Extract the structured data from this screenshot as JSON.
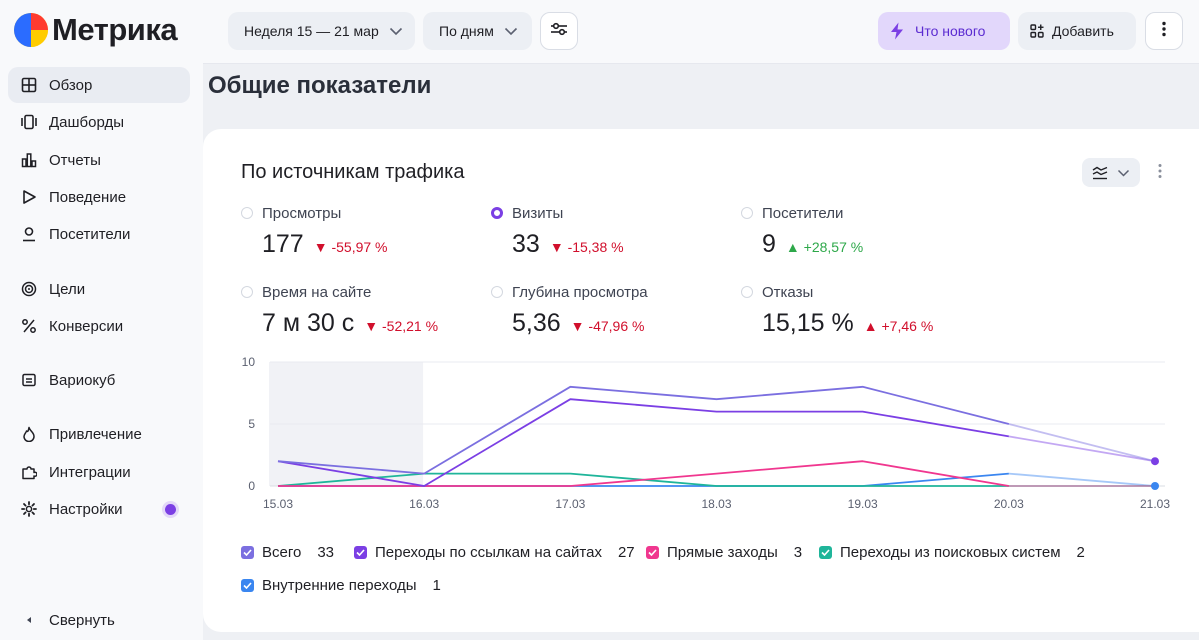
{
  "app": {
    "brand": "Метрика"
  },
  "sidebar": {
    "items": [
      {
        "label": "Обзор",
        "icon": "grid-icon",
        "active": true
      },
      {
        "label": "Дашборды",
        "icon": "dashboard-icon"
      },
      {
        "label": "Отчеты",
        "icon": "bar-chart-icon"
      },
      {
        "label": "Поведение",
        "icon": "play-icon"
      },
      {
        "label": "Посетители",
        "icon": "user-icon"
      },
      {
        "label": "Цели",
        "icon": "target-icon"
      },
      {
        "label": "Конверсии",
        "icon": "percent-icon"
      },
      {
        "label": "Вариокуб",
        "icon": "cube-icon"
      },
      {
        "label": "Привлечение",
        "icon": "flame-icon"
      },
      {
        "label": "Интеграции",
        "icon": "puzzle-icon"
      },
      {
        "label": "Настройки",
        "icon": "gear-icon"
      }
    ],
    "collapse_label": "Свернуть"
  },
  "topbar": {
    "period": "Неделя 15 — 21 мар",
    "grouping": "По дням",
    "whats_new": "Что нового",
    "add": "Добавить"
  },
  "page": {
    "title": "Общие показатели"
  },
  "widget": {
    "title": "По источникам трафика",
    "metrics": [
      {
        "label": "Просмотры",
        "value": "177",
        "delta": "-55,97 %",
        "dir": "down",
        "selected": false
      },
      {
        "label": "Визиты",
        "value": "33",
        "delta": "-15,38 %",
        "dir": "down",
        "selected": true
      },
      {
        "label": "Посетители",
        "value": "9",
        "delta": "+28,57 %",
        "dir": "up",
        "selected": false
      },
      {
        "label": "Время на сайте",
        "value": "7 м 30 с",
        "delta": "-52,21 %",
        "dir": "down",
        "selected": false
      },
      {
        "label": "Глубина просмотра",
        "value": "5,36",
        "delta": "-47,96 %",
        "dir": "down",
        "selected": false
      },
      {
        "label": "Отказы",
        "value": "15,15 %",
        "delta": "+7,46 %",
        "dir": "down",
        "selected": false
      }
    ],
    "legend": [
      {
        "label": "Всего",
        "count": "33",
        "color": "#7b6fe0"
      },
      {
        "label": "Переходы по ссылкам на сайтах",
        "count": "27",
        "color": "#7b3fe4"
      },
      {
        "label": "Прямые заходы",
        "count": "3",
        "color": "#f0378f"
      },
      {
        "label": "Переходы из поисковых систем",
        "count": "2",
        "color": "#1fb59a"
      },
      {
        "label": "Внутренние переходы",
        "count": "1",
        "color": "#3a86f0"
      }
    ]
  },
  "chart_data": {
    "type": "line",
    "x": [
      "15.03",
      "16.03",
      "17.03",
      "18.03",
      "19.03",
      "20.03",
      "21.03"
    ],
    "y_ticks": [
      "0",
      "5",
      "10"
    ],
    "ylim": [
      0,
      10
    ],
    "grid": true,
    "highlight_range": [
      "15.03",
      "16.03"
    ],
    "series": [
      {
        "name": "Всего",
        "color": "#7b6fe0",
        "values": [
          2,
          1,
          8,
          7,
          8,
          5,
          2
        ]
      },
      {
        "name": "Переходы по ссылкам на сайтах",
        "color": "#7b3fe4",
        "values": [
          2,
          0,
          7,
          6,
          6,
          4,
          2
        ]
      },
      {
        "name": "Прямые заходы",
        "color": "#f0378f",
        "values": [
          0,
          0,
          0,
          1,
          2,
          0,
          0
        ]
      },
      {
        "name": "Переходы из поисковых систем",
        "color": "#1fb59a",
        "values": [
          0,
          1,
          1,
          0,
          0,
          0,
          0
        ]
      },
      {
        "name": "Внутренние переходы",
        "color": "#3a86f0",
        "values": [
          0,
          0,
          0,
          0,
          0,
          1,
          0
        ]
      }
    ]
  }
}
